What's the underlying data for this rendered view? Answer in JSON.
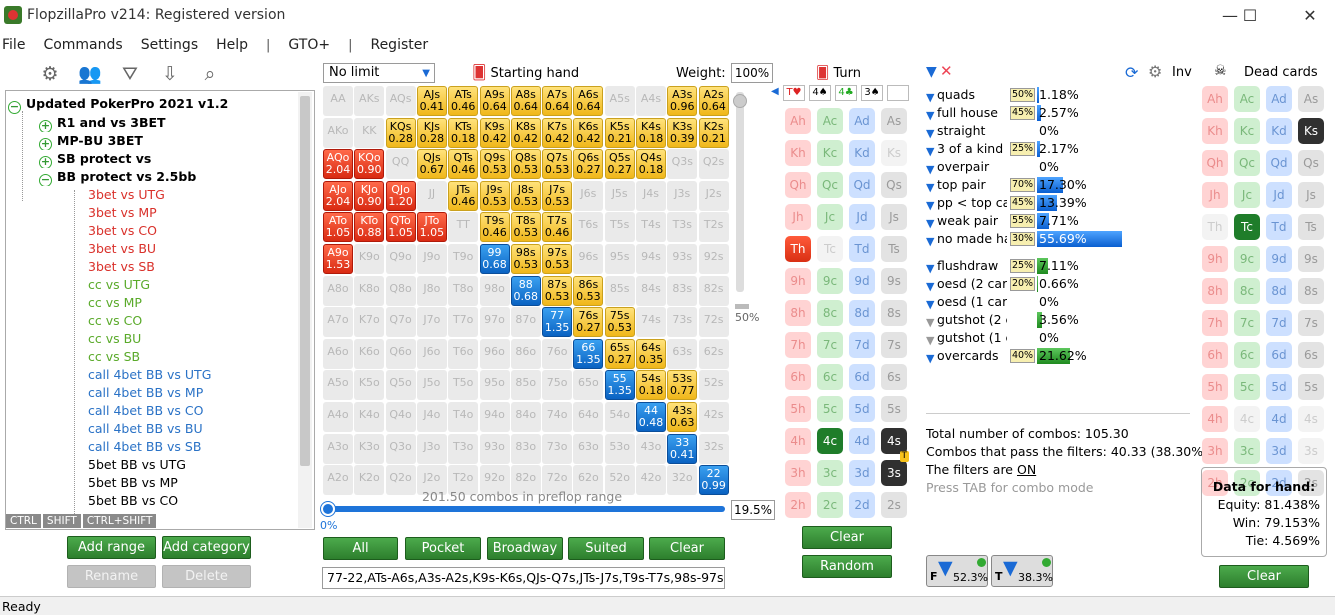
{
  "window": {
    "title": "FlopzillaPro v214: Registered version",
    "minimize": "—",
    "maximize": "☐",
    "close": "✕"
  },
  "menu": {
    "file": "File",
    "commands": "Commands",
    "settings": "Settings",
    "help": "Help",
    "sep1": "|",
    "gto": "GTO+",
    "sep2": "|",
    "register": "Register"
  },
  "toolbar_icons": [
    "gear-icon",
    "users-icon",
    "filter-plus-icon",
    "import-icon",
    "search-icon"
  ],
  "tree": {
    "root": "Updated PokerPro 2021 v1.2",
    "items": [
      {
        "label": "R1 and vs 3BET",
        "level": 1,
        "exp": "+",
        "color": "#000",
        "bold": true
      },
      {
        "label": "MP-BU 3BET",
        "level": 1,
        "exp": "+",
        "color": "#000",
        "bold": true
      },
      {
        "label": "SB protect vs",
        "level": 1,
        "exp": "+",
        "color": "#000",
        "bold": true
      },
      {
        "label": "BB protect vs 2.5bb",
        "level": 1,
        "exp": "−",
        "color": "#000",
        "bold": true
      },
      {
        "label": "3bet vs UTG",
        "level": 2,
        "color": "#d9302a"
      },
      {
        "label": "3bet vs MP",
        "level": 2,
        "color": "#d9302a"
      },
      {
        "label": "3bet vs CO",
        "level": 2,
        "color": "#d9302a"
      },
      {
        "label": "3bet vs BU",
        "level": 2,
        "color": "#d9302a"
      },
      {
        "label": "3bet vs SB",
        "level": 2,
        "color": "#d9302a"
      },
      {
        "label": "cc vs UTG",
        "level": 2,
        "color": "#5aaa2a"
      },
      {
        "label": "cc vs MP",
        "level": 2,
        "color": "#5aaa2a"
      },
      {
        "label": "cc vs CO",
        "level": 2,
        "color": "#5aaa2a"
      },
      {
        "label": "cc vs BU",
        "level": 2,
        "color": "#5aaa2a"
      },
      {
        "label": "cc vs SB",
        "level": 2,
        "color": "#5aaa2a"
      },
      {
        "label": "call 4bet BB vs UTG",
        "level": 2,
        "color": "#2a72c6"
      },
      {
        "label": "call 4bet BB vs MP",
        "level": 2,
        "color": "#2a72c6"
      },
      {
        "label": "call 4bet BB vs CO",
        "level": 2,
        "color": "#2a72c6"
      },
      {
        "label": "call 4bet BB vs BU",
        "level": 2,
        "color": "#2a72c6"
      },
      {
        "label": "call 4bet BB vs SB",
        "level": 2,
        "color": "#2a72c6"
      },
      {
        "label": "5bet BB vs UTG",
        "level": 2,
        "color": "#000"
      },
      {
        "label": "5bet BB vs MP",
        "level": 2,
        "color": "#000"
      },
      {
        "label": "5bet BB vs CO",
        "level": 2,
        "color": "#000"
      }
    ]
  },
  "modkeys": [
    "CTRL",
    "SHIFT",
    "CTRL+SHIFT"
  ],
  "left_buttons": {
    "add_range": "Add range",
    "add_category": "Add category",
    "rename": "Rename",
    "delete": "Delete"
  },
  "range": {
    "game": "No limit",
    "starting_hand": "Starting hand",
    "weight_label": "Weight:",
    "weight": "100%",
    "combos_text": "201.50 combos in preflop range",
    "slider_pct": "0%",
    "range_pct": "19.5%",
    "vslider_label": "50%",
    "range_string": "77-22,ATs-A6s,A3s-A2s,K9s-K6s,QJs-Q7s,JTs-J7s,T9s-T7s,98s-97s,8",
    "buttons": {
      "all": "All",
      "pocket": "Pocket",
      "broadway": "Broadway",
      "suited": "Suited",
      "clear": "Clear"
    }
  },
  "matrix": [
    [
      {
        "h": "AA",
        "t": "off"
      },
      {
        "h": "AKs",
        "t": "off"
      },
      {
        "h": "AQs",
        "t": "off"
      },
      {
        "h": "AJs",
        "t": "y",
        "w": "0.41"
      },
      {
        "h": "ATs",
        "t": "y",
        "w": "0.46"
      },
      {
        "h": "A9s",
        "t": "y",
        "w": "0.64"
      },
      {
        "h": "A8s",
        "t": "y",
        "w": "0.64"
      },
      {
        "h": "A7s",
        "t": "y",
        "w": "0.64"
      },
      {
        "h": "A6s",
        "t": "y",
        "w": "0.64"
      },
      {
        "h": "A5s",
        "t": "off"
      },
      {
        "h": "A4s",
        "t": "off"
      },
      {
        "h": "A3s",
        "t": "y",
        "w": "0.96"
      },
      {
        "h": "A2s",
        "t": "y",
        "w": "0.64"
      }
    ],
    [
      {
        "h": "AKo",
        "t": "off"
      },
      {
        "h": "KK",
        "t": "off"
      },
      {
        "h": "KQs",
        "t": "y",
        "w": "0.28"
      },
      {
        "h": "KJs",
        "t": "y",
        "w": "0.28"
      },
      {
        "h": "KTs",
        "t": "y",
        "w": "0.18"
      },
      {
        "h": "K9s",
        "t": "y",
        "w": "0.42"
      },
      {
        "h": "K8s",
        "t": "y",
        "w": "0.42"
      },
      {
        "h": "K7s",
        "t": "y",
        "w": "0.42"
      },
      {
        "h": "K6s",
        "t": "y",
        "w": "0.42"
      },
      {
        "h": "K5s",
        "t": "y",
        "w": "0.21"
      },
      {
        "h": "K4s",
        "t": "y",
        "w": "0.18"
      },
      {
        "h": "K3s",
        "t": "y",
        "w": "0.39"
      },
      {
        "h": "K2s",
        "t": "y",
        "w": "0.21"
      }
    ],
    [
      {
        "h": "AQo",
        "t": "r",
        "w": "2.04"
      },
      {
        "h": "KQo",
        "t": "r",
        "w": "0.90"
      },
      {
        "h": "QQ",
        "t": "off"
      },
      {
        "h": "QJs",
        "t": "y",
        "w": "0.67"
      },
      {
        "h": "QTs",
        "t": "y",
        "w": "0.46"
      },
      {
        "h": "Q9s",
        "t": "y",
        "w": "0.53"
      },
      {
        "h": "Q8s",
        "t": "y",
        "w": "0.53"
      },
      {
        "h": "Q7s",
        "t": "y",
        "w": "0.53"
      },
      {
        "h": "Q6s",
        "t": "y",
        "w": "0.27"
      },
      {
        "h": "Q5s",
        "t": "y",
        "w": "0.27"
      },
      {
        "h": "Q4s",
        "t": "y",
        "w": "0.18"
      },
      {
        "h": "Q3s",
        "t": "off"
      },
      {
        "h": "Q2s",
        "t": "off"
      }
    ],
    [
      {
        "h": "AJo",
        "t": "r",
        "w": "2.04"
      },
      {
        "h": "KJo",
        "t": "r",
        "w": "0.90"
      },
      {
        "h": "QJo",
        "t": "r",
        "w": "1.20"
      },
      {
        "h": "JJ",
        "t": "off"
      },
      {
        "h": "JTs",
        "t": "y",
        "w": "0.46"
      },
      {
        "h": "J9s",
        "t": "y",
        "w": "0.53"
      },
      {
        "h": "J8s",
        "t": "y",
        "w": "0.53"
      },
      {
        "h": "J7s",
        "t": "y",
        "w": "0.53"
      },
      {
        "h": "J6s",
        "t": "off"
      },
      {
        "h": "J5s",
        "t": "off"
      },
      {
        "h": "J4s",
        "t": "off"
      },
      {
        "h": "J3s",
        "t": "off"
      },
      {
        "h": "J2s",
        "t": "off"
      }
    ],
    [
      {
        "h": "ATo",
        "t": "r",
        "w": "1.05"
      },
      {
        "h": "KTo",
        "t": "r",
        "w": "0.88"
      },
      {
        "h": "QTo",
        "t": "r",
        "w": "1.05"
      },
      {
        "h": "JTo",
        "t": "r",
        "w": "1.05"
      },
      {
        "h": "TT",
        "t": "off"
      },
      {
        "h": "T9s",
        "t": "y",
        "w": "0.46"
      },
      {
        "h": "T8s",
        "t": "y",
        "w": "0.53"
      },
      {
        "h": "T7s",
        "t": "y",
        "w": "0.46"
      },
      {
        "h": "T6s",
        "t": "off"
      },
      {
        "h": "T5s",
        "t": "off"
      },
      {
        "h": "T4s",
        "t": "off"
      },
      {
        "h": "T3s",
        "t": "off"
      },
      {
        "h": "T2s",
        "t": "off"
      }
    ],
    [
      {
        "h": "A9o",
        "t": "r",
        "w": "1.53"
      },
      {
        "h": "K9o",
        "t": "off"
      },
      {
        "h": "Q9o",
        "t": "off"
      },
      {
        "h": "J9o",
        "t": "off"
      },
      {
        "h": "T9o",
        "t": "off"
      },
      {
        "h": "99",
        "t": "b",
        "w": "0.68"
      },
      {
        "h": "98s",
        "t": "y",
        "w": "0.53"
      },
      {
        "h": "97s",
        "t": "y",
        "w": "0.53"
      },
      {
        "h": "96s",
        "t": "off"
      },
      {
        "h": "95s",
        "t": "off"
      },
      {
        "h": "94s",
        "t": "off"
      },
      {
        "h": "93s",
        "t": "off"
      },
      {
        "h": "92s",
        "t": "off"
      }
    ],
    [
      {
        "h": "A8o",
        "t": "off"
      },
      {
        "h": "K8o",
        "t": "off"
      },
      {
        "h": "Q8o",
        "t": "off"
      },
      {
        "h": "J8o",
        "t": "off"
      },
      {
        "h": "T8o",
        "t": "off"
      },
      {
        "h": "98o",
        "t": "off"
      },
      {
        "h": "88",
        "t": "b",
        "w": "0.68"
      },
      {
        "h": "87s",
        "t": "y",
        "w": "0.53"
      },
      {
        "h": "86s",
        "t": "y",
        "w": "0.53"
      },
      {
        "h": "85s",
        "t": "off"
      },
      {
        "h": "84s",
        "t": "off"
      },
      {
        "h": "83s",
        "t": "off"
      },
      {
        "h": "82s",
        "t": "off"
      }
    ],
    [
      {
        "h": "A7o",
        "t": "off"
      },
      {
        "h": "K7o",
        "t": "off"
      },
      {
        "h": "Q7o",
        "t": "off"
      },
      {
        "h": "J7o",
        "t": "off"
      },
      {
        "h": "T7o",
        "t": "off"
      },
      {
        "h": "97o",
        "t": "off"
      },
      {
        "h": "87o",
        "t": "off"
      },
      {
        "h": "77",
        "t": "b",
        "w": "1.35"
      },
      {
        "h": "76s",
        "t": "y",
        "w": "0.27"
      },
      {
        "h": "75s",
        "t": "y",
        "w": "0.53"
      },
      {
        "h": "74s",
        "t": "off"
      },
      {
        "h": "73s",
        "t": "off"
      },
      {
        "h": "72s",
        "t": "off"
      }
    ],
    [
      {
        "h": "A6o",
        "t": "off"
      },
      {
        "h": "K6o",
        "t": "off"
      },
      {
        "h": "Q6o",
        "t": "off"
      },
      {
        "h": "J6o",
        "t": "off"
      },
      {
        "h": "T6o",
        "t": "off"
      },
      {
        "h": "96o",
        "t": "off"
      },
      {
        "h": "86o",
        "t": "off"
      },
      {
        "h": "76o",
        "t": "off"
      },
      {
        "h": "66",
        "t": "b",
        "w": "1.35"
      },
      {
        "h": "65s",
        "t": "y",
        "w": "0.27"
      },
      {
        "h": "64s",
        "t": "y",
        "w": "0.35"
      },
      {
        "h": "63s",
        "t": "off"
      },
      {
        "h": "62s",
        "t": "off"
      }
    ],
    [
      {
        "h": "A5o",
        "t": "off"
      },
      {
        "h": "K5o",
        "t": "off"
      },
      {
        "h": "Q5o",
        "t": "off"
      },
      {
        "h": "J5o",
        "t": "off"
      },
      {
        "h": "T5o",
        "t": "off"
      },
      {
        "h": "95o",
        "t": "off"
      },
      {
        "h": "85o",
        "t": "off"
      },
      {
        "h": "75o",
        "t": "off"
      },
      {
        "h": "65o",
        "t": "off"
      },
      {
        "h": "55",
        "t": "b",
        "w": "1.35"
      },
      {
        "h": "54s",
        "t": "y",
        "w": "0.18"
      },
      {
        "h": "53s",
        "t": "y",
        "w": "0.77"
      },
      {
        "h": "52s",
        "t": "off"
      }
    ],
    [
      {
        "h": "A4o",
        "t": "off"
      },
      {
        "h": "K4o",
        "t": "off"
      },
      {
        "h": "Q4o",
        "t": "off"
      },
      {
        "h": "J4o",
        "t": "off"
      },
      {
        "h": "T4o",
        "t": "off"
      },
      {
        "h": "94o",
        "t": "off"
      },
      {
        "h": "84o",
        "t": "off"
      },
      {
        "h": "74o",
        "t": "off"
      },
      {
        "h": "64o",
        "t": "off"
      },
      {
        "h": "54o",
        "t": "off"
      },
      {
        "h": "44",
        "t": "b",
        "w": "0.48"
      },
      {
        "h": "43s",
        "t": "y",
        "w": "0.63"
      },
      {
        "h": "42s",
        "t": "off"
      }
    ],
    [
      {
        "h": "A3o",
        "t": "off"
      },
      {
        "h": "K3o",
        "t": "off"
      },
      {
        "h": "Q3o",
        "t": "off"
      },
      {
        "h": "J3o",
        "t": "off"
      },
      {
        "h": "T3o",
        "t": "off"
      },
      {
        "h": "93o",
        "t": "off"
      },
      {
        "h": "83o",
        "t": "off"
      },
      {
        "h": "73o",
        "t": "off"
      },
      {
        "h": "63o",
        "t": "off"
      },
      {
        "h": "53o",
        "t": "off"
      },
      {
        "h": "43o",
        "t": "off"
      },
      {
        "h": "33",
        "t": "b",
        "w": "0.41"
      },
      {
        "h": "32s",
        "t": "off"
      }
    ],
    [
      {
        "h": "A2o",
        "t": "off"
      },
      {
        "h": "K2o",
        "t": "off"
      },
      {
        "h": "Q2o",
        "t": "off"
      },
      {
        "h": "J2o",
        "t": "off"
      },
      {
        "h": "T2o",
        "t": "off"
      },
      {
        "h": "92o",
        "t": "off"
      },
      {
        "h": "82o",
        "t": "off"
      },
      {
        "h": "72o",
        "t": "off"
      },
      {
        "h": "62o",
        "t": "off"
      },
      {
        "h": "52o",
        "t": "off"
      },
      {
        "h": "42o",
        "t": "off"
      },
      {
        "h": "32o",
        "t": "off"
      },
      {
        "h": "22",
        "t": "b",
        "w": "0.99"
      }
    ]
  ],
  "turn": {
    "label": "Turn",
    "mini": [
      "T♥",
      "4♠",
      "4♣",
      "3♠",
      ""
    ],
    "clear": "Clear",
    "random": "Random",
    "selected": {
      "Th": "h",
      "4c": "c",
      "4s": "s",
      "3s": "s"
    },
    "dimmed": [
      "Ks",
      "Tc"
    ],
    "marker_3s": "T"
  },
  "ranks": [
    "A",
    "K",
    "Q",
    "J",
    "T",
    "9",
    "8",
    "7",
    "6",
    "5",
    "4",
    "3",
    "2"
  ],
  "stats": {
    "inv": "Inv",
    "rows": [
      {
        "label": "quads",
        "w": "50%",
        "val": "1.18%",
        "pct": 1.18,
        "color": "blue",
        "funnel": "blue"
      },
      {
        "label": "full house",
        "w": "45%",
        "val": "2.57%",
        "pct": 2.57,
        "color": "blue",
        "funnel": "blue"
      },
      {
        "label": "straight",
        "w": "",
        "val": "0%",
        "pct": 0,
        "color": "blue",
        "funnel": "blue"
      },
      {
        "label": "3 of a kind",
        "w": "25%",
        "val": "2.17%",
        "pct": 2.17,
        "color": "blue",
        "funnel": "blue"
      },
      {
        "label": "overpair",
        "w": "",
        "val": "0%",
        "pct": 0,
        "color": "blue",
        "funnel": "blue"
      },
      {
        "label": "top pair",
        "w": "70%",
        "val": "17.30%",
        "pct": 17.3,
        "color": "blue",
        "funnel": "blue"
      },
      {
        "label": "pp < top card",
        "w": "45%",
        "val": "13.39%",
        "pct": 13.39,
        "color": "blue",
        "funnel": "blue"
      },
      {
        "label": "weak pair",
        "w": "55%",
        "val": "7.71%",
        "pct": 7.71,
        "color": "blue",
        "funnel": "blue"
      },
      {
        "label": "no made hand",
        "w": "30%",
        "val": "55.69%",
        "pct": 55.69,
        "color": "blue",
        "funnel": "blue"
      },
      {
        "label": "flushdraw",
        "w": "25%",
        "val": "7.11%",
        "pct": 7.11,
        "color": "green",
        "funnel": "blue"
      },
      {
        "label": "oesd (2 cards)",
        "w": "20%",
        "val": "0.66%",
        "pct": 0.66,
        "color": "green",
        "funnel": "blue"
      },
      {
        "label": "oesd (1 card)",
        "w": "",
        "val": "0%",
        "pct": 0,
        "color": "green",
        "funnel": "blue"
      },
      {
        "label": "gutshot (2 crd)",
        "w": "",
        "val": "3.56%",
        "pct": 3.56,
        "color": "green",
        "funnel": "gray"
      },
      {
        "label": "gutshot (1 crd)",
        "w": "",
        "val": "0%",
        "pct": 0,
        "color": "green",
        "funnel": "gray"
      },
      {
        "label": "overcards",
        "w": "40%",
        "val": "21.62%",
        "pct": 21.62,
        "color": "green",
        "funnel": "blue"
      }
    ]
  },
  "summary": {
    "total": "Total number of combos: 105.30",
    "pass": "Combos that pass the filters: 40.33 (38.30%)",
    "filters_prefix": "The filters are ",
    "filters_state": "ON",
    "hint": "Press TAB for combo mode"
  },
  "filter_boxes": {
    "f_pct": "52.3%",
    "t_pct": "38.3%",
    "f_letter": "F",
    "t_letter": "T"
  },
  "dead": {
    "label": "Dead cards",
    "clear": "Clear",
    "selected": {
      "Ks": "s",
      "Tc": "c"
    },
    "dimmed": [
      "Th",
      "4c",
      "4s",
      "3s"
    ]
  },
  "hand_data": {
    "title": "Data for hand:",
    "equity": "Equity: 81.438%",
    "win": "Win: 79.153%",
    "tie": "Tie: 4.569%"
  },
  "status": "Ready"
}
